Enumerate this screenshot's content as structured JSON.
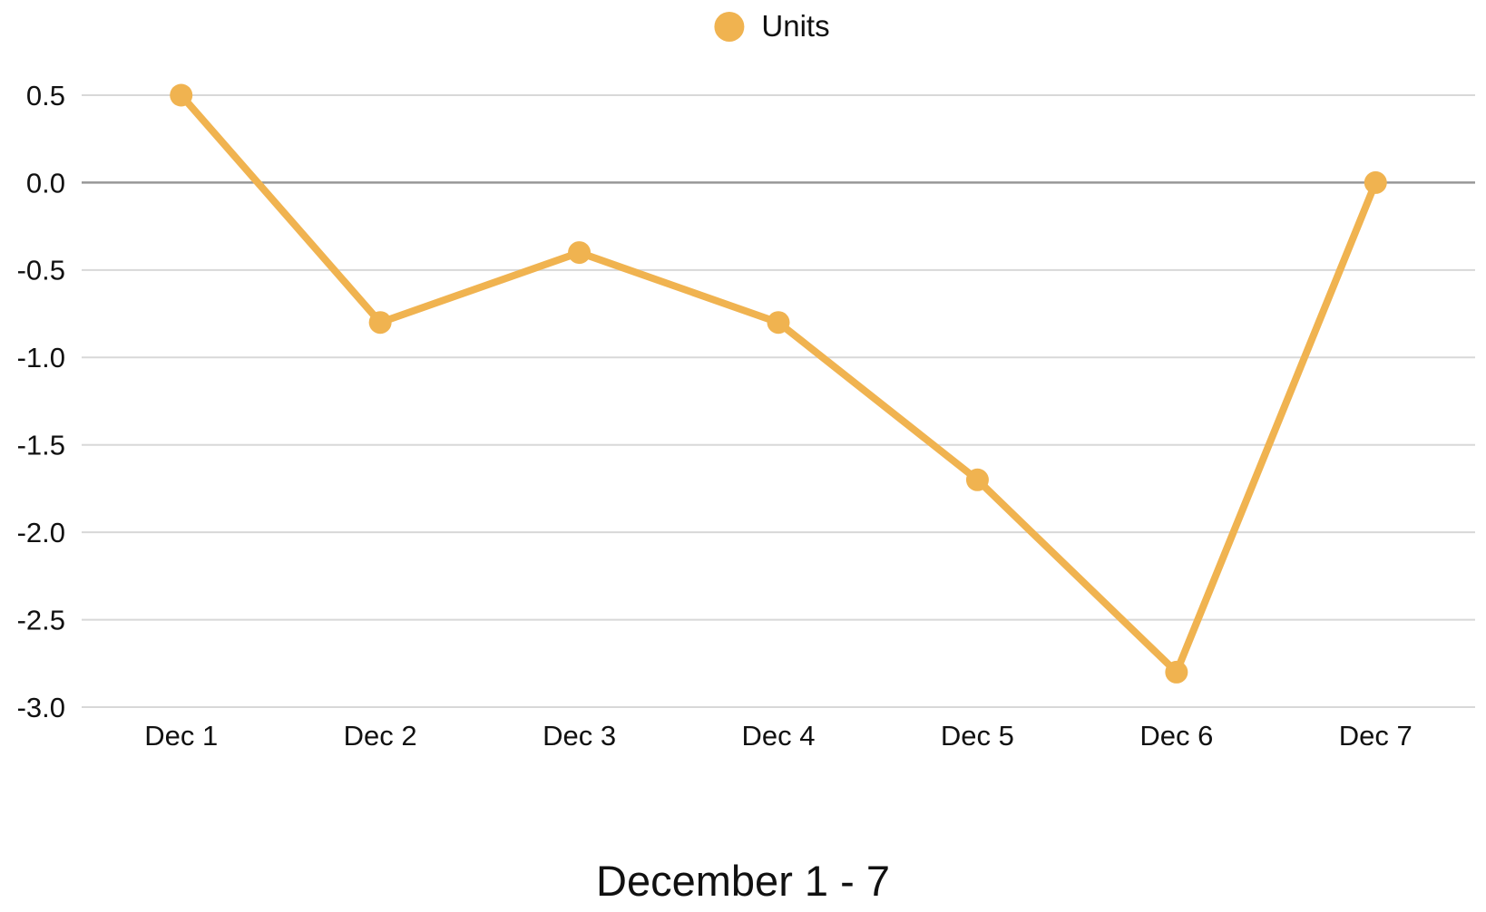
{
  "legend": {
    "label": "Units",
    "marker_color": "#F0B350"
  },
  "title": "December 1 - 7",
  "chart_data": {
    "type": "line",
    "title": "December 1 - 7",
    "xlabel": "",
    "ylabel": "",
    "categories": [
      "Dec 1",
      "Dec 2",
      "Dec 3",
      "Dec 4",
      "Dec 5",
      "Dec 6",
      "Dec 7"
    ],
    "series": [
      {
        "name": "Units",
        "values": [
          0.5,
          -0.8,
          -0.4,
          -0.8,
          -1.7,
          -2.8,
          0.0
        ],
        "color": "#F0B350"
      }
    ],
    "yticks": [
      0.5,
      0.0,
      -0.5,
      -1.0,
      -1.5,
      -2.0,
      -2.5,
      -3.0
    ],
    "ylim": [
      -3.0,
      0.5
    ],
    "grid": true,
    "grid_color": "#D8D8D8",
    "zero_line_color": "#979797",
    "tick_label_color": "#111111",
    "legend_position": "top"
  }
}
